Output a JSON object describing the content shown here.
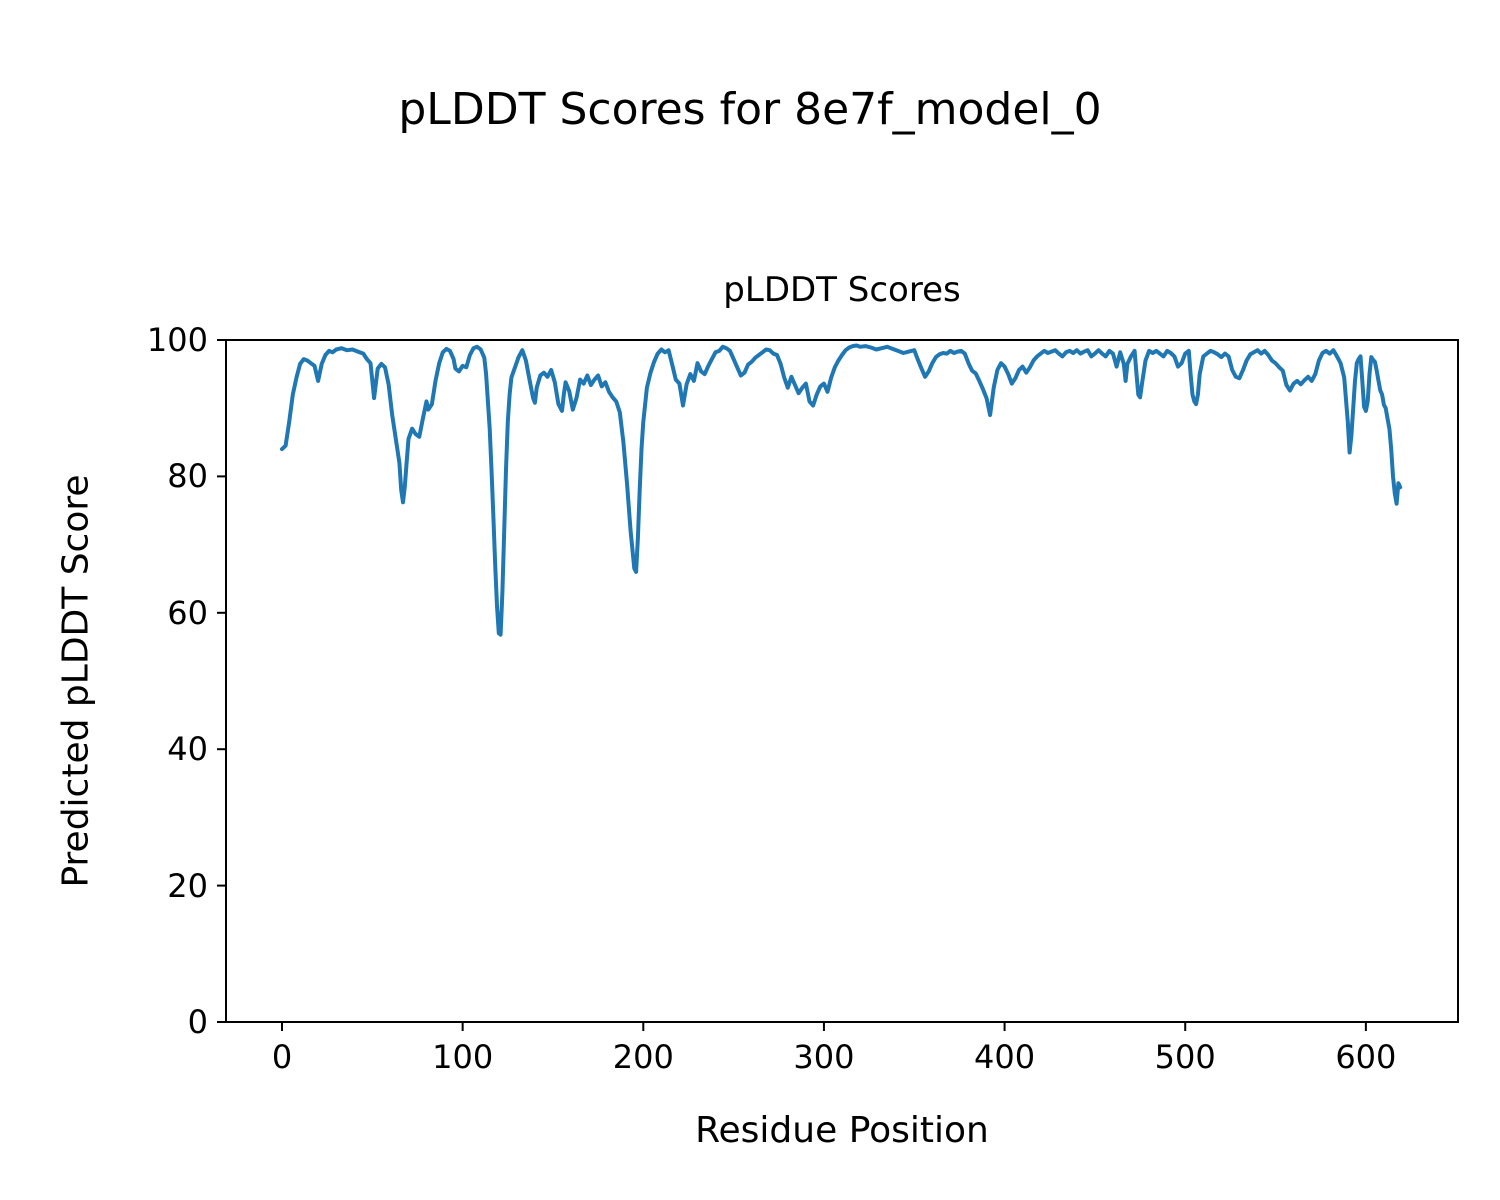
{
  "chart_data": {
    "type": "line",
    "suptitle": "pLDDT Scores for 8e7f_model_0",
    "title": "pLDDT Scores",
    "xlabel": "Residue Position",
    "ylabel": "Predicted pLDDT Score",
    "xlim": [
      -31,
      651
    ],
    "ylim": [
      0,
      100
    ],
    "xticks": [
      0,
      100,
      200,
      300,
      400,
      500,
      600
    ],
    "yticks": [
      0,
      20,
      40,
      60,
      80,
      100
    ],
    "grid": false,
    "line_color": "#1f77b4",
    "line_width": 4,
    "series_name": "pLDDT",
    "points": [
      [
        0,
        84
      ],
      [
        2,
        84.5
      ],
      [
        4,
        88
      ],
      [
        6,
        92
      ],
      [
        8,
        94.5
      ],
      [
        10,
        96.5
      ],
      [
        12,
        97.2
      ],
      [
        14,
        97
      ],
      [
        16,
        96.6
      ],
      [
        18,
        96.2
      ],
      [
        20,
        94
      ],
      [
        22,
        96.5
      ],
      [
        24,
        97.8
      ],
      [
        26,
        98.4
      ],
      [
        28,
        98.2
      ],
      [
        30,
        98.6
      ],
      [
        33,
        98.8
      ],
      [
        36,
        98.5
      ],
      [
        39,
        98.6
      ],
      [
        42,
        98.3
      ],
      [
        45,
        98
      ],
      [
        47,
        97.2
      ],
      [
        49,
        96.6
      ],
      [
        51,
        91.5
      ],
      [
        53,
        95.8
      ],
      [
        55,
        96.5
      ],
      [
        57,
        96
      ],
      [
        59,
        93.5
      ],
      [
        61,
        89
      ],
      [
        63,
        85.5
      ],
      [
        65,
        82
      ],
      [
        66,
        78
      ],
      [
        67,
        76.2
      ],
      [
        68,
        78.5
      ],
      [
        69,
        82
      ],
      [
        70,
        85.5
      ],
      [
        72,
        87
      ],
      [
        74,
        86.2
      ],
      [
        76,
        85.8
      ],
      [
        78,
        88.5
      ],
      [
        80,
        91
      ],
      [
        81,
        89.8
      ],
      [
        83,
        90.6
      ],
      [
        85,
        94
      ],
      [
        87,
        96.6
      ],
      [
        89,
        98.2
      ],
      [
        91,
        98.7
      ],
      [
        93,
        98.4
      ],
      [
        95,
        97.2
      ],
      [
        96,
        95.8
      ],
      [
        98,
        95.4
      ],
      [
        100,
        96.2
      ],
      [
        102,
        96
      ],
      [
        104,
        97.8
      ],
      [
        106,
        98.8
      ],
      [
        108,
        99
      ],
      [
        110,
        98.6
      ],
      [
        112,
        97.4
      ],
      [
        113,
        95
      ],
      [
        114,
        91
      ],
      [
        115,
        87
      ],
      [
        116,
        81
      ],
      [
        117,
        74
      ],
      [
        118,
        67
      ],
      [
        119,
        61
      ],
      [
        120,
        57
      ],
      [
        121,
        56.8
      ],
      [
        122,
        63
      ],
      [
        123,
        72
      ],
      [
        124,
        81
      ],
      [
        125,
        88
      ],
      [
        126,
        92
      ],
      [
        127,
        94.5
      ],
      [
        129,
        96
      ],
      [
        131,
        97.5
      ],
      [
        133,
        98.5
      ],
      [
        135,
        97
      ],
      [
        137,
        94.2
      ],
      [
        139,
        91.5
      ],
      [
        140,
        90.8
      ],
      [
        141,
        93
      ],
      [
        143,
        94.8
      ],
      [
        145,
        95.2
      ],
      [
        147,
        94.6
      ],
      [
        149,
        95.6
      ],
      [
        151,
        93.8
      ],
      [
        153,
        90.6
      ],
      [
        155,
        89.6
      ],
      [
        156,
        92
      ],
      [
        157,
        93.8
      ],
      [
        159,
        92.5
      ],
      [
        161,
        89.8
      ],
      [
        163,
        91.5
      ],
      [
        165,
        94.2
      ],
      [
        167,
        93.6
      ],
      [
        169,
        94.8
      ],
      [
        171,
        93.4
      ],
      [
        173,
        94.2
      ],
      [
        175,
        94.8
      ],
      [
        177,
        93.2
      ],
      [
        179,
        93.8
      ],
      [
        181,
        92.4
      ],
      [
        183,
        91.6
      ],
      [
        185,
        91
      ],
      [
        187,
        89.4
      ],
      [
        189,
        85
      ],
      [
        191,
        79
      ],
      [
        193,
        72
      ],
      [
        195,
        66.5
      ],
      [
        196,
        66
      ],
      [
        197,
        71
      ],
      [
        198,
        78
      ],
      [
        199,
        84
      ],
      [
        200,
        88
      ],
      [
        202,
        93
      ],
      [
        204,
        95.2
      ],
      [
        206,
        96.8
      ],
      [
        208,
        98
      ],
      [
        210,
        98.6
      ],
      [
        212,
        98.2
      ],
      [
        214,
        98.5
      ],
      [
        216,
        96.4
      ],
      [
        218,
        94.2
      ],
      [
        220,
        93.6
      ],
      [
        222,
        90.4
      ],
      [
        224,
        93.5
      ],
      [
        226,
        95
      ],
      [
        228,
        94
      ],
      [
        230,
        96.6
      ],
      [
        232,
        95.4
      ],
      [
        234,
        95
      ],
      [
        236,
        96.2
      ],
      [
        238,
        97.2
      ],
      [
        240,
        98.2
      ],
      [
        242,
        98.4
      ],
      [
        244,
        99
      ],
      [
        246,
        98.8
      ],
      [
        248,
        98.4
      ],
      [
        250,
        97.2
      ],
      [
        252,
        96
      ],
      [
        254,
        94.8
      ],
      [
        256,
        95.2
      ],
      [
        258,
        96.4
      ],
      [
        260,
        96.8
      ],
      [
        262,
        97.4
      ],
      [
        264,
        97.8
      ],
      [
        266,
        98.2
      ],
      [
        268,
        98.6
      ],
      [
        270,
        98.5
      ],
      [
        272,
        98
      ],
      [
        274,
        97.8
      ],
      [
        276,
        96.5
      ],
      [
        278,
        94.5
      ],
      [
        280,
        93
      ],
      [
        282,
        94.6
      ],
      [
        284,
        93.4
      ],
      [
        286,
        92.2
      ],
      [
        288,
        93
      ],
      [
        290,
        93.6
      ],
      [
        292,
        91
      ],
      [
        294,
        90.4
      ],
      [
        296,
        92
      ],
      [
        298,
        93.2
      ],
      [
        300,
        93.6
      ],
      [
        302,
        92.4
      ],
      [
        304,
        94.5
      ],
      [
        306,
        96
      ],
      [
        308,
        97
      ],
      [
        310,
        97.8
      ],
      [
        312,
        98.5
      ],
      [
        314,
        98.9
      ],
      [
        316,
        99.1
      ],
      [
        318,
        99.2
      ],
      [
        320,
        99
      ],
      [
        323,
        99.1
      ],
      [
        326,
        98.9
      ],
      [
        329,
        98.6
      ],
      [
        332,
        98.8
      ],
      [
        335,
        99
      ],
      [
        338,
        98.7
      ],
      [
        341,
        98.4
      ],
      [
        344,
        98.1
      ],
      [
        347,
        98.3
      ],
      [
        350,
        98.5
      ],
      [
        352,
        97.1
      ],
      [
        354,
        95.8
      ],
      [
        356,
        94.6
      ],
      [
        358,
        95.4
      ],
      [
        360,
        96.6
      ],
      [
        362,
        97.5
      ],
      [
        364,
        97.9
      ],
      [
        366,
        98.1
      ],
      [
        368,
        98
      ],
      [
        370,
        98.4
      ],
      [
        372,
        98.1
      ],
      [
        374,
        98.3
      ],
      [
        376,
        98.4
      ],
      [
        378,
        98
      ],
      [
        380,
        96.6
      ],
      [
        382,
        95.5
      ],
      [
        384,
        95.1
      ],
      [
        386,
        94
      ],
      [
        388,
        92.8
      ],
      [
        390,
        91.5
      ],
      [
        392,
        89
      ],
      [
        394,
        93
      ],
      [
        396,
        95.6
      ],
      [
        398,
        96.6
      ],
      [
        400,
        96.1
      ],
      [
        402,
        95
      ],
      [
        404,
        93.6
      ],
      [
        406,
        94.4
      ],
      [
        408,
        95.6
      ],
      [
        410,
        96.1
      ],
      [
        412,
        95.2
      ],
      [
        414,
        96
      ],
      [
        416,
        97
      ],
      [
        418,
        97.6
      ],
      [
        420,
        98
      ],
      [
        422,
        98.4
      ],
      [
        424,
        98.1
      ],
      [
        426,
        98.3
      ],
      [
        428,
        98.5
      ],
      [
        430,
        98
      ],
      [
        432,
        97.6
      ],
      [
        434,
        98.2
      ],
      [
        436,
        98.4
      ],
      [
        438,
        98.1
      ],
      [
        440,
        98.5
      ],
      [
        442,
        98
      ],
      [
        444,
        98.3
      ],
      [
        446,
        98.5
      ],
      [
        448,
        97.6
      ],
      [
        450,
        98
      ],
      [
        452,
        98.5
      ],
      [
        454,
        98
      ],
      [
        456,
        97.6
      ],
      [
        458,
        98.4
      ],
      [
        460,
        98
      ],
      [
        462,
        96.1
      ],
      [
        464,
        98.2
      ],
      [
        466,
        96.5
      ],
      [
        467,
        94
      ],
      [
        468,
        96.5
      ],
      [
        470,
        97.6
      ],
      [
        472,
        98.4
      ],
      [
        473,
        95
      ],
      [
        474,
        92
      ],
      [
        475,
        91.6
      ],
      [
        476,
        93.5
      ],
      [
        478,
        97
      ],
      [
        480,
        98.4
      ],
      [
        482,
        98.1
      ],
      [
        484,
        98.4
      ],
      [
        486,
        98
      ],
      [
        488,
        97.6
      ],
      [
        490,
        98.4
      ],
      [
        492,
        98.1
      ],
      [
        494,
        97.6
      ],
      [
        496,
        96.1
      ],
      [
        498,
        96.6
      ],
      [
        500,
        98
      ],
      [
        502,
        98.4
      ],
      [
        503,
        95
      ],
      [
        504,
        92
      ],
      [
        505,
        91
      ],
      [
        506,
        90.6
      ],
      [
        507,
        92
      ],
      [
        508,
        95
      ],
      [
        510,
        97.6
      ],
      [
        512,
        98
      ],
      [
        514,
        98.4
      ],
      [
        516,
        98.2
      ],
      [
        518,
        97.9
      ],
      [
        520,
        97.5
      ],
      [
        522,
        98
      ],
      [
        524,
        97.6
      ],
      [
        526,
        95.6
      ],
      [
        528,
        94.6
      ],
      [
        530,
        94.4
      ],
      [
        532,
        95.6
      ],
      [
        534,
        97
      ],
      [
        536,
        97.9
      ],
      [
        538,
        98.2
      ],
      [
        540,
        98.5
      ],
      [
        542,
        98
      ],
      [
        544,
        98.4
      ],
      [
        546,
        97.8
      ],
      [
        548,
        97
      ],
      [
        550,
        96.6
      ],
      [
        552,
        96
      ],
      [
        554,
        95.5
      ],
      [
        556,
        93.4
      ],
      [
        558,
        92.6
      ],
      [
        560,
        93.6
      ],
      [
        562,
        94
      ],
      [
        564,
        93.5
      ],
      [
        566,
        94.1
      ],
      [
        568,
        94.6
      ],
      [
        570,
        94
      ],
      [
        572,
        95
      ],
      [
        574,
        97
      ],
      [
        576,
        98.1
      ],
      [
        578,
        98.4
      ],
      [
        580,
        98
      ],
      [
        582,
        98.5
      ],
      [
        584,
        97.6
      ],
      [
        586,
        96.6
      ],
      [
        588,
        94.5
      ],
      [
        590,
        88
      ],
      [
        591,
        83.5
      ],
      [
        592,
        86
      ],
      [
        593,
        90
      ],
      [
        594,
        94
      ],
      [
        595,
        96.6
      ],
      [
        596,
        97.2
      ],
      [
        597,
        97.6
      ],
      [
        598,
        94
      ],
      [
        599,
        90.2
      ],
      [
        600,
        89.6
      ],
      [
        601,
        91
      ],
      [
        602,
        95
      ],
      [
        603,
        97.5
      ],
      [
        604,
        97.1
      ],
      [
        605,
        96.8
      ],
      [
        606,
        95.5
      ],
      [
        607,
        94
      ],
      [
        608,
        92.6
      ],
      [
        609,
        92
      ],
      [
        610,
        90.5
      ],
      [
        611,
        90
      ],
      [
        612,
        88.5
      ],
      [
        613,
        87
      ],
      [
        614,
        84
      ],
      [
        615,
        80
      ],
      [
        616,
        77.5
      ],
      [
        617,
        76
      ],
      [
        618,
        79
      ],
      [
        619,
        78.4
      ]
    ]
  }
}
